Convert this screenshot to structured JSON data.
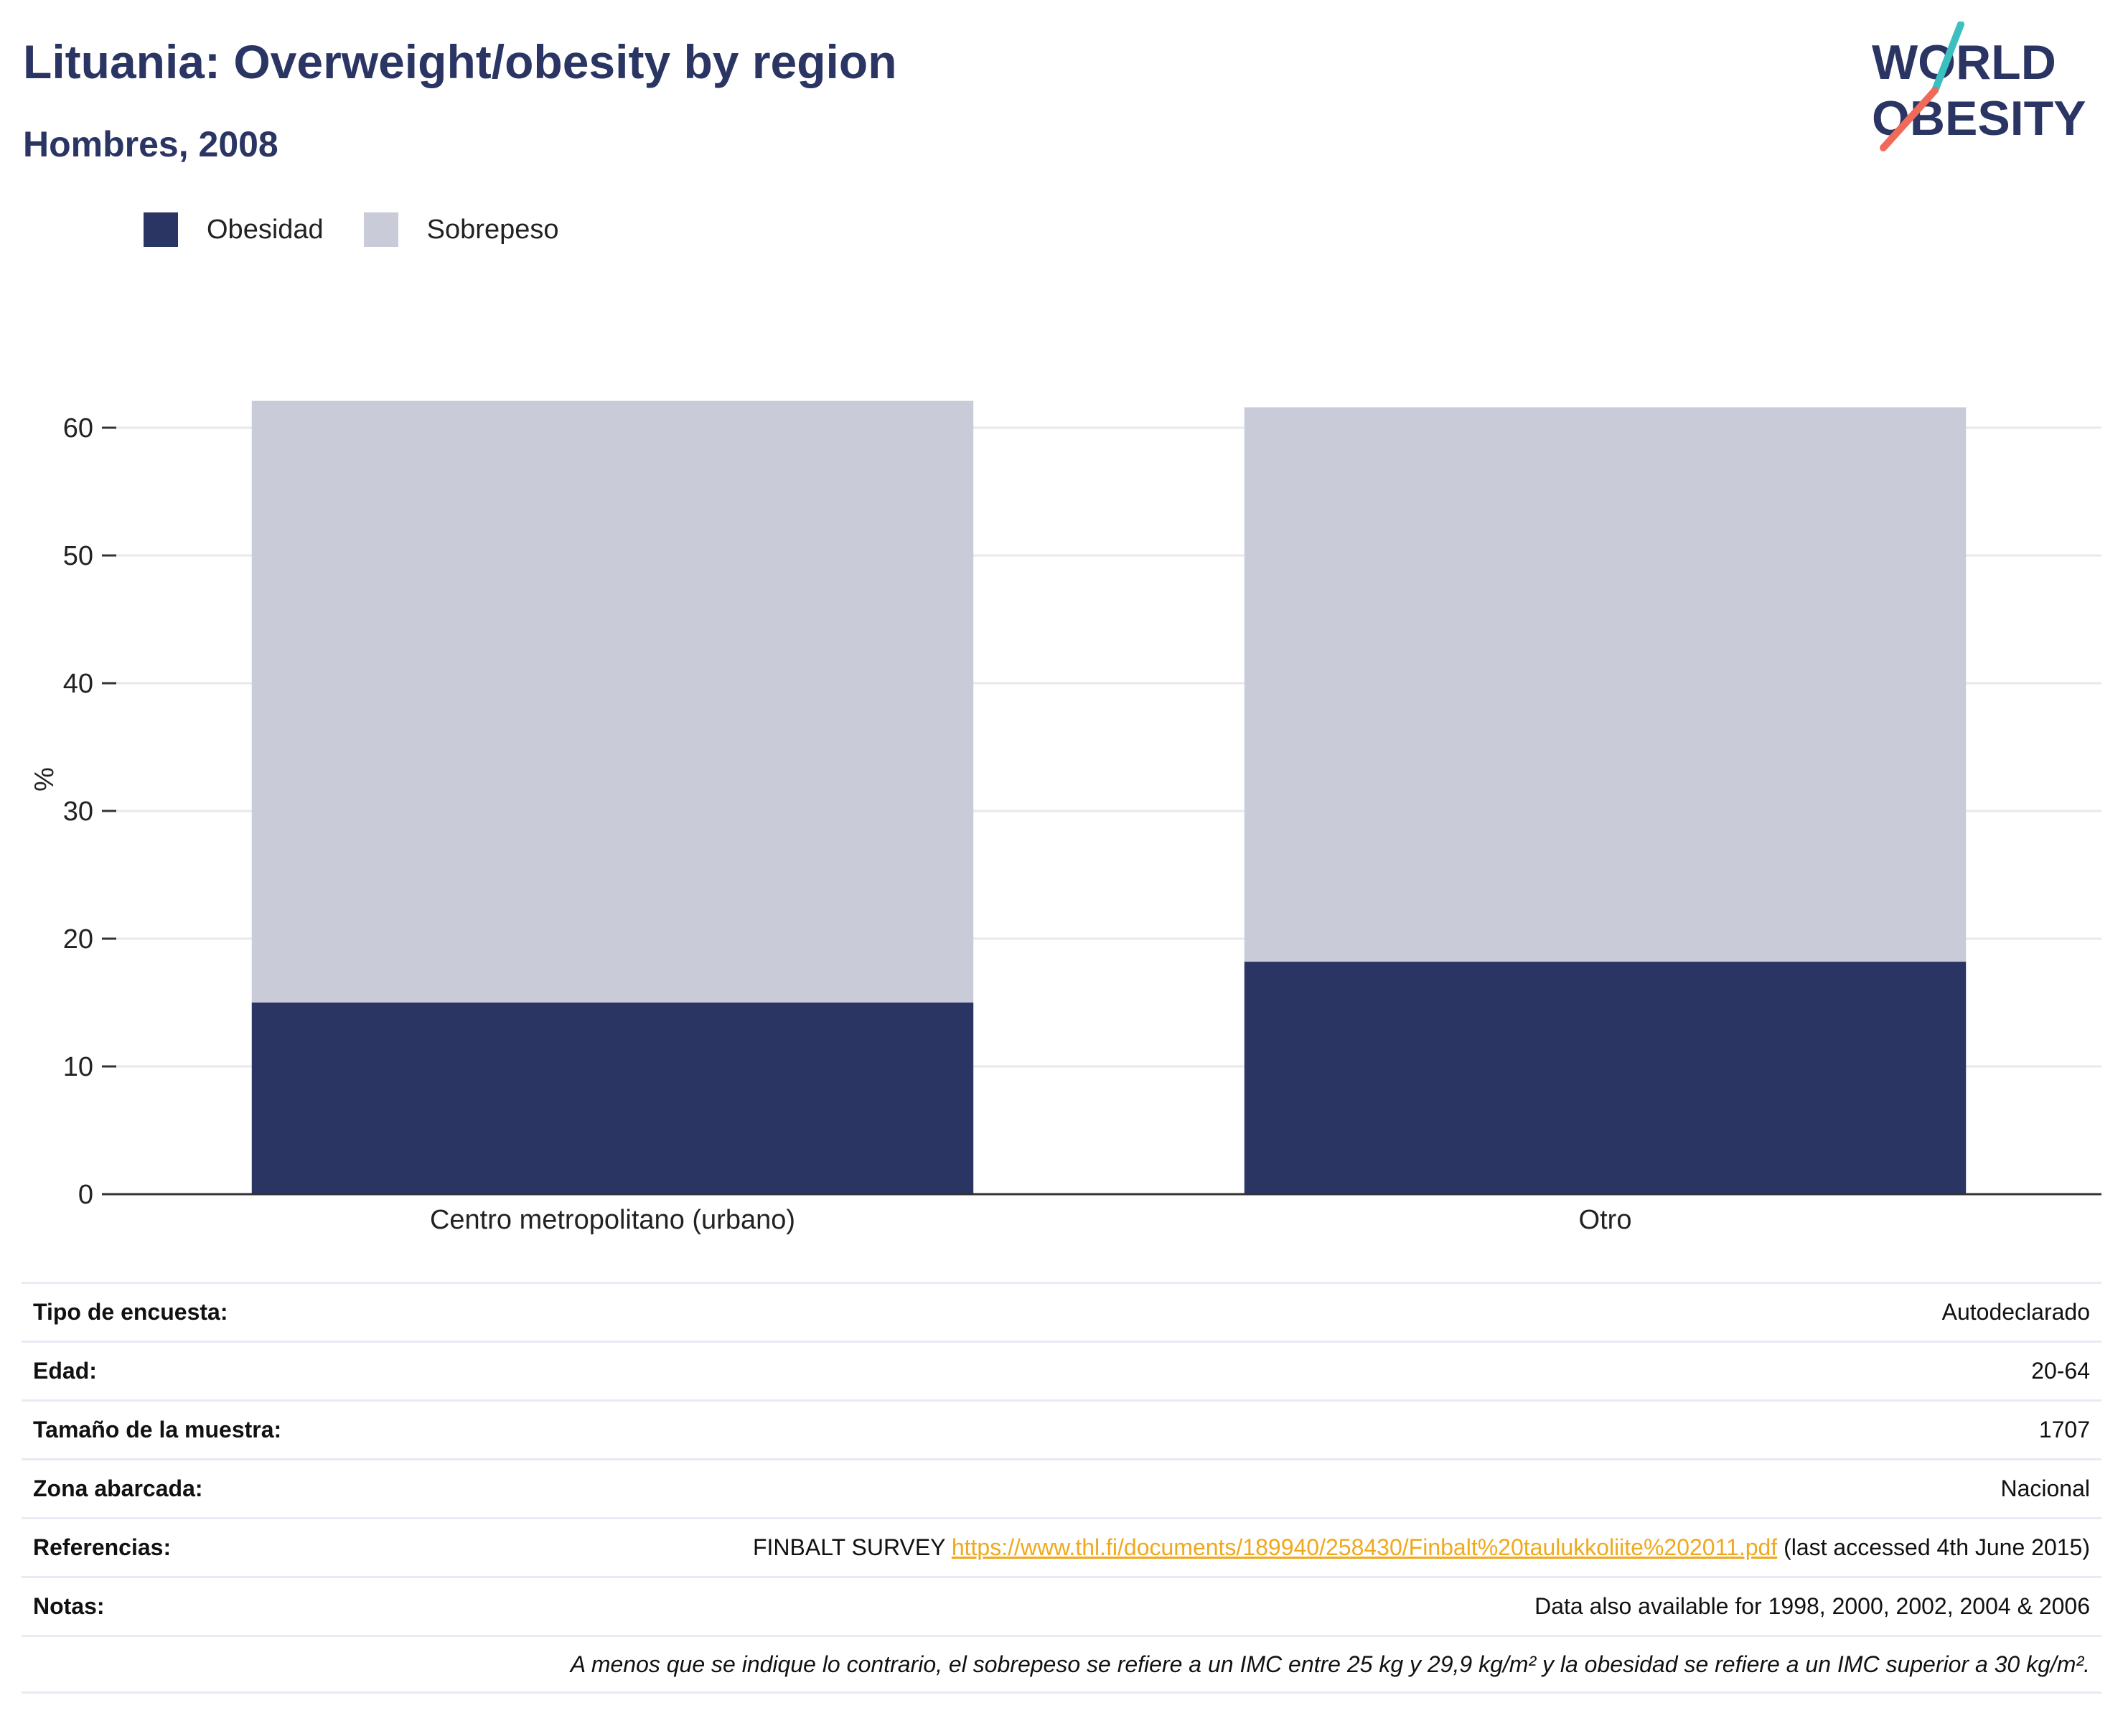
{
  "header": {
    "title": "Lituania: Overweight/obesity by region",
    "subtitle": "Hombres, 2008"
  },
  "logo": {
    "line1": "WORLD",
    "line2": "OBESITY",
    "colors": {
      "text": "#2a3563",
      "slash_top": "#3bbfbf",
      "slash_bottom": "#f06a5a"
    }
  },
  "legend": {
    "items": [
      {
        "label": "Obesidad",
        "color": "#2a3563"
      },
      {
        "label": "Sobrepeso",
        "color": "#c9ccd8"
      }
    ]
  },
  "chart_data": {
    "type": "bar",
    "stacked": true,
    "categories": [
      "Centro metropolitano (urbano)",
      "Otro"
    ],
    "series": [
      {
        "name": "Obesidad",
        "values": [
          15.0,
          18.2
        ],
        "color": "#2a3563"
      },
      {
        "name": "Sobrepeso",
        "values": [
          47.1,
          43.4
        ],
        "color": "#c9ccd8"
      }
    ],
    "ylabel": "%",
    "ylim": [
      0,
      65
    ],
    "yticks": [
      0,
      10,
      20,
      30,
      40,
      50,
      60
    ],
    "grid": true,
    "legend_position": "top-left"
  },
  "info": {
    "rows": [
      {
        "label": "Tipo de encuesta:",
        "value": "Autodeclarado"
      },
      {
        "label": "Edad:",
        "value": "20-64"
      },
      {
        "label": "Tamaño de la muestra:",
        "value": "1707"
      },
      {
        "label": "Zona abarcada:",
        "value": "Nacional"
      }
    ],
    "references": {
      "label": "Referencias:",
      "prefix": "FINBALT SURVEY ",
      "link": "https://www.thl.fi/documents/189940/258430/Finbalt%20taulukkoliite%202011.pdf",
      "suffix": " (last accessed 4th June 2015)"
    },
    "notes": {
      "label": "Notas:",
      "value": "Data also available for 1998, 2000, 2002, 2004 & 2006"
    },
    "footnote": "A menos que se indique lo contrario, el sobrepeso se refiere a un IMC entre 25 kg y 29,9 kg/m² y la obesidad se refiere a un IMC superior a 30 kg/m²."
  }
}
